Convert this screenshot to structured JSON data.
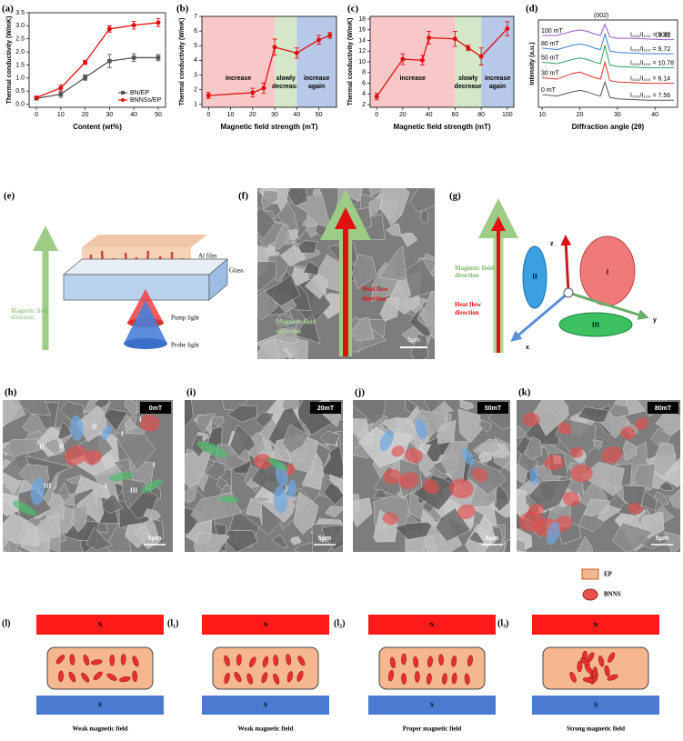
{
  "chart_data": [
    {
      "type": "line",
      "label": "(a)",
      "xlabel": "Content (wt%)",
      "ylabel": "Thermal conductivity (W/mK)",
      "x": [
        0,
        10,
        20,
        30,
        40,
        50
      ],
      "xlim": [
        -3,
        53
      ],
      "xticks": [
        0,
        10,
        20,
        30,
        40,
        50
      ],
      "ylim": [
        -0.12,
        3.5
      ],
      "yticks": [
        {
          "value": 0,
          "label": "0.0"
        },
        0.5,
        {
          "value": 1,
          "label": "1.0"
        },
        1.5,
        {
          "value": 2,
          "label": "2.0"
        },
        2.5,
        {
          "value": 3,
          "label": "3.0"
        },
        3.5
      ],
      "legend": "lower right",
      "series": [
        {
          "name": "BN/EP",
          "color": "#555555",
          "marker": "square",
          "values": [
            0.22,
            0.38,
            1.02,
            1.65,
            1.78,
            1.78
          ],
          "errors": [
            0.05,
            0.12,
            0.1,
            0.25,
            0.15,
            0.12
          ]
        },
        {
          "name": "BNNSs/EP",
          "color": "#e01010",
          "marker": "circle",
          "values": [
            0.25,
            0.62,
            1.6,
            2.88,
            3.02,
            3.12
          ],
          "errors": [
            0.05,
            0.12,
            0.08,
            0.12,
            0.15,
            0.15
          ]
        }
      ]
    },
    {
      "type": "line",
      "label": "(b)",
      "xlabel": "Magnetic field strength (mT)",
      "ylabel": "Thermal conductivity (W/mK)",
      "x": [
        0,
        20,
        25,
        30,
        40,
        50,
        55
      ],
      "xlim": [
        -3,
        58
      ],
      "xticks": [
        0,
        10,
        20,
        30,
        40,
        50
      ],
      "ylim": [
        0.8,
        7
      ],
      "yticks": [
        1,
        2,
        3,
        4,
        5,
        6,
        7
      ],
      "regions": [
        {
          "label": "increase",
          "from": -3,
          "to": 30,
          "color": "#f8c8c8"
        },
        {
          "label": "slowly decrease",
          "from": 30,
          "to": 40,
          "color": "#d4e7c8"
        },
        {
          "label": "increase again",
          "from": 40,
          "to": 58,
          "color": "#b8c8e8"
        }
      ],
      "series": [
        {
          "color": "#e01010",
          "marker": "circle",
          "values": [
            1.6,
            1.8,
            2.1,
            4.9,
            4.5,
            5.4,
            5.7
          ],
          "errors": [
            0.2,
            0.3,
            0.35,
            0.55,
            0.35,
            0.3,
            0.2
          ]
        }
      ]
    },
    {
      "type": "line",
      "label": "(c)",
      "xlabel": "Magnetic field strength (mT)",
      "ylabel": "Thermal conductivity (W/mK)",
      "x": [
        0,
        20,
        35,
        40,
        60,
        70,
        80,
        100
      ],
      "xlim": [
        -5,
        105
      ],
      "xticks": [
        0,
        20,
        40,
        60,
        80,
        100
      ],
      "ylim": [
        1.5,
        18.5
      ],
      "yticks": [
        2,
        4,
        6,
        8,
        10,
        12,
        14,
        16,
        18
      ],
      "regions": [
        {
          "label": "increase",
          "from": -5,
          "to": 60,
          "color": "#f8c8c8"
        },
        {
          "label": "slowly decrease",
          "from": 60,
          "to": 80,
          "color": "#d4e7c8"
        },
        {
          "label": "increase again",
          "from": 80,
          "to": 105,
          "color": "#b8c8e8"
        }
      ],
      "series": [
        {
          "color": "#e01010",
          "marker": "circle",
          "values": [
            3.5,
            10.5,
            10.3,
            14.5,
            14.3,
            12.6,
            11.0,
            16.2
          ],
          "errors": [
            0.6,
            1.0,
            0.9,
            1.2,
            1.4,
            0.5,
            1.6,
            1.3
          ]
        }
      ]
    },
    {
      "type": "line",
      "label": "(d)",
      "xlabel": "Diffraction angle (2θ)",
      "ylabel": "Intensity (a.u.)",
      "x": [
        10,
        14,
        18,
        20,
        22,
        24,
        25.5,
        26.7,
        28,
        30,
        34,
        38,
        42,
        45
      ],
      "xlim": [
        9,
        46
      ],
      "xticks": [
        10,
        20,
        30,
        40
      ],
      "ylim": [
        0.4,
        6.6
      ],
      "peak_labels": [
        "(002)",
        "(100)"
      ],
      "series": [
        {
          "name": "100 mT",
          "ratio": "I₀₀₂/I₁₀₀ = 9.38",
          "color": "#9a55c8",
          "values": [
            5.5,
            5.5,
            5.8,
            5.9,
            5.8,
            5.6,
            5.5,
            6.3,
            5.4,
            5.3,
            5.3,
            5.25,
            5.2,
            5.2
          ]
        },
        {
          "name": "80 mT",
          "ratio": "I₀₀₂/I₁₀₀ = 9.72",
          "color": "#3a7fd0",
          "values": [
            4.6,
            4.5,
            4.8,
            4.9,
            4.8,
            4.6,
            4.5,
            5.6,
            4.4,
            4.3,
            4.25,
            4.2,
            4.2,
            4.2
          ]
        },
        {
          "name": "50 mT",
          "ratio": "I₀₀₂/I₁₀₀ = 10.78",
          "color": "#2aa060",
          "values": [
            3.6,
            3.5,
            3.8,
            3.9,
            3.8,
            3.6,
            3.5,
            4.8,
            3.4,
            3.3,
            3.25,
            3.2,
            3.2,
            3.2
          ]
        },
        {
          "name": "30 mT",
          "ratio": "I₀₀₂/I₁₀₀ = 6.14",
          "color": "#e03030",
          "values": [
            2.5,
            2.4,
            2.8,
            2.9,
            2.7,
            2.5,
            2.4,
            3.6,
            2.3,
            2.2,
            2.15,
            2.1,
            2.1,
            2.1
          ]
        },
        {
          "name": "0 mT",
          "ratio": "I₀₀₂/I₁₀₀ = 7.56",
          "color": "#555555",
          "values": [
            1.3,
            1.2,
            1.5,
            1.6,
            1.5,
            1.3,
            1.2,
            2.2,
            1.1,
            1.0,
            0.95,
            0.9,
            0.9,
            0.9
          ]
        }
      ]
    }
  ],
  "panel_e": {
    "label": "(e)",
    "film": "Al film",
    "glass": "Glass",
    "pump": "Pump light",
    "probe": "Probe light",
    "field": "Magnetic field direction"
  },
  "panel_f": {
    "label": "(f)",
    "heat": "Heat flow direction",
    "field": "Magnetic field direction",
    "scale": "5μm"
  },
  "panel_g": {
    "label": "(g)",
    "z": "z",
    "y": "y",
    "x": "x",
    "plane1": "I",
    "plane2": "II",
    "plane3": "III",
    "field": "Magnetic field direction",
    "heat": "Heat flow direction"
  },
  "sem": [
    {
      "label": "(h)",
      "field": "0mT",
      "scale": "5μm",
      "marks": [
        "I",
        "I",
        "II",
        "II",
        "II",
        "I",
        "III",
        "III",
        "I"
      ]
    },
    {
      "label": "(i)",
      "field": "20mT",
      "scale": "5μm"
    },
    {
      "label": "(j)",
      "field": "50mT",
      "scale": "5μm"
    },
    {
      "label": "(k)",
      "field": "80mT",
      "scale": "5μm"
    }
  ],
  "panel_l": {
    "legend": [
      "EP",
      "BNNS"
    ],
    "panels": [
      {
        "label": "(l)",
        "north": "N",
        "south": "S",
        "caption": "Weak magnetic field"
      },
      {
        "label": "(l₁)",
        "north": "N",
        "south": "S",
        "caption": "Weak magnetic field"
      },
      {
        "label": "(l₂)",
        "north": "N",
        "south": "S",
        "caption": "Proper magnetic field"
      },
      {
        "label": "(l₃)",
        "north": "N",
        "south": "S",
        "caption": "Strong magnetic field"
      }
    ]
  }
}
